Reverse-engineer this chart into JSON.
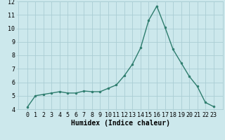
{
  "x": [
    0,
    1,
    2,
    3,
    4,
    5,
    6,
    7,
    8,
    9,
    10,
    11,
    12,
    13,
    14,
    15,
    16,
    17,
    18,
    19,
    20,
    21,
    22,
    23
  ],
  "y": [
    4.15,
    5.0,
    5.1,
    5.2,
    5.3,
    5.2,
    5.2,
    5.35,
    5.3,
    5.3,
    5.55,
    5.8,
    6.5,
    7.35,
    8.55,
    10.6,
    11.65,
    10.1,
    8.45,
    7.45,
    6.45,
    5.7,
    4.5,
    4.2
  ],
  "line_color": "#2e7d6e",
  "marker": "o",
  "marker_size": 2.0,
  "line_width": 1.0,
  "bg_color": "#cce8ec",
  "grid_color": "#aacdd4",
  "xlabel": "Humidex (Indice chaleur)",
  "xlabel_fontsize": 7,
  "tick_fontsize": 6,
  "ylim": [
    4,
    12
  ],
  "yticks": [
    4,
    5,
    6,
    7,
    8,
    9,
    10,
    11,
    12
  ],
  "xticks": [
    0,
    1,
    2,
    3,
    4,
    5,
    6,
    7,
    8,
    9,
    10,
    11,
    12,
    13,
    14,
    15,
    16,
    17,
    18,
    19,
    20,
    21,
    22,
    23
  ],
  "xtick_labels": [
    "0",
    "1",
    "2",
    "3",
    "4",
    "5",
    "6",
    "7",
    "8",
    "9",
    "10",
    "11",
    "12",
    "13",
    "14",
    "15",
    "16",
    "17",
    "18",
    "19",
    "20",
    "21",
    "22",
    "23"
  ]
}
